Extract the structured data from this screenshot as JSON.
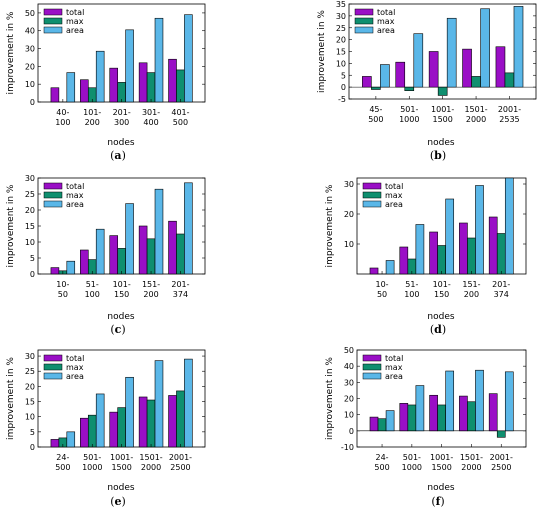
{
  "colors": {
    "total": "#9a0fc6",
    "max": "#0f8f6f",
    "area": "#5ab7e8"
  },
  "axis_label_y": "improvement in %",
  "axis_label_x": "nodes",
  "chart_data": [
    {
      "type": "bar",
      "caption": "a",
      "categories": [
        [
          "40-",
          "100"
        ],
        [
          "101-",
          "200"
        ],
        [
          "201-",
          "300"
        ],
        [
          "301-",
          "400"
        ],
        [
          "401-",
          "500"
        ]
      ],
      "ylim": [
        0,
        55
      ],
      "yticks": [
        0,
        10,
        20,
        30,
        40,
        50
      ],
      "series": [
        {
          "name": "total",
          "values": [
            8,
            12.5,
            19,
            22,
            24
          ]
        },
        {
          "name": "max",
          "values": [
            0,
            8,
            11,
            16.5,
            18
          ]
        },
        {
          "name": "area",
          "values": [
            16.5,
            28.5,
            40.5,
            47,
            49
          ]
        }
      ]
    },
    {
      "type": "bar",
      "caption": "b",
      "categories": [
        [
          "45-",
          "500"
        ],
        [
          "501-",
          "1000"
        ],
        [
          "1001-",
          "1500"
        ],
        [
          "1501-",
          "2000"
        ],
        [
          "2001-",
          "2535"
        ]
      ],
      "ylim": [
        -5,
        35
      ],
      "yticks": [
        -5,
        0,
        5,
        10,
        15,
        20,
        25,
        30,
        35
      ],
      "series": [
        {
          "name": "total",
          "values": [
            4.5,
            10.5,
            15,
            16,
            17
          ]
        },
        {
          "name": "max",
          "values": [
            -1,
            -1.5,
            -3.5,
            4.5,
            6
          ]
        },
        {
          "name": "area",
          "values": [
            9.5,
            22.5,
            29,
            33,
            34
          ]
        }
      ]
    },
    {
      "type": "bar",
      "caption": "c",
      "categories": [
        [
          "10-",
          "50"
        ],
        [
          "51-",
          "100"
        ],
        [
          "101-",
          "150"
        ],
        [
          "151-",
          "200"
        ],
        [
          "201-",
          "374"
        ]
      ],
      "ylim": [
        0,
        30
      ],
      "yticks": [
        0,
        5,
        10,
        15,
        20,
        25,
        30
      ],
      "series": [
        {
          "name": "total",
          "values": [
            2,
            7.5,
            12,
            15,
            16.5
          ]
        },
        {
          "name": "max",
          "values": [
            1,
            4.5,
            8,
            11,
            12.5
          ]
        },
        {
          "name": "area",
          "values": [
            4,
            14,
            22,
            26.5,
            28.5
          ]
        }
      ]
    },
    {
      "type": "bar",
      "caption": "d",
      "categories": [
        [
          "10-",
          "50"
        ],
        [
          "51-",
          "100"
        ],
        [
          "101-",
          "150"
        ],
        [
          "151-",
          "200"
        ],
        [
          "201-",
          "374"
        ]
      ],
      "ylim": [
        0,
        32
      ],
      "yticks": [
        10,
        20,
        30
      ],
      "series": [
        {
          "name": "total",
          "values": [
            2,
            9,
            14,
            17,
            19
          ]
        },
        {
          "name": "max",
          "values": [
            0,
            5,
            9.5,
            12,
            13.5
          ]
        },
        {
          "name": "area",
          "values": [
            4.5,
            16.5,
            25,
            29.5,
            32
          ]
        }
      ]
    },
    {
      "type": "bar",
      "caption": "e",
      "categories": [
        [
          "24-",
          "500"
        ],
        [
          "501-",
          "1000"
        ],
        [
          "1001-",
          "1500"
        ],
        [
          "1501-",
          "2000"
        ],
        [
          "2001-",
          "2500"
        ]
      ],
      "ylim": [
        0,
        32
      ],
      "yticks": [
        0,
        5,
        10,
        15,
        20,
        25,
        30
      ],
      "series": [
        {
          "name": "total",
          "values": [
            2.5,
            9.5,
            11.5,
            16.5,
            17
          ]
        },
        {
          "name": "max",
          "values": [
            3,
            10.5,
            13,
            15.5,
            18.5
          ]
        },
        {
          "name": "area",
          "values": [
            5,
            17.5,
            23,
            28.5,
            29
          ]
        }
      ]
    },
    {
      "type": "bar",
      "caption": "f",
      "categories": [
        [
          "24-",
          "500"
        ],
        [
          "501-",
          "1000"
        ],
        [
          "1001-",
          "1500"
        ],
        [
          "1501-",
          "2000"
        ],
        [
          "2001-",
          "2500"
        ]
      ],
      "ylim": [
        -10,
        50
      ],
      "yticks": [
        -10,
        0,
        10,
        20,
        30,
        40,
        50
      ],
      "series": [
        {
          "name": "total",
          "values": [
            8.5,
            17,
            22,
            21.5,
            23
          ]
        },
        {
          "name": "max",
          "values": [
            7.5,
            16,
            16,
            18,
            -4
          ]
        },
        {
          "name": "area",
          "values": [
            12.5,
            28,
            37,
            37.5,
            36.5
          ]
        }
      ]
    }
  ]
}
